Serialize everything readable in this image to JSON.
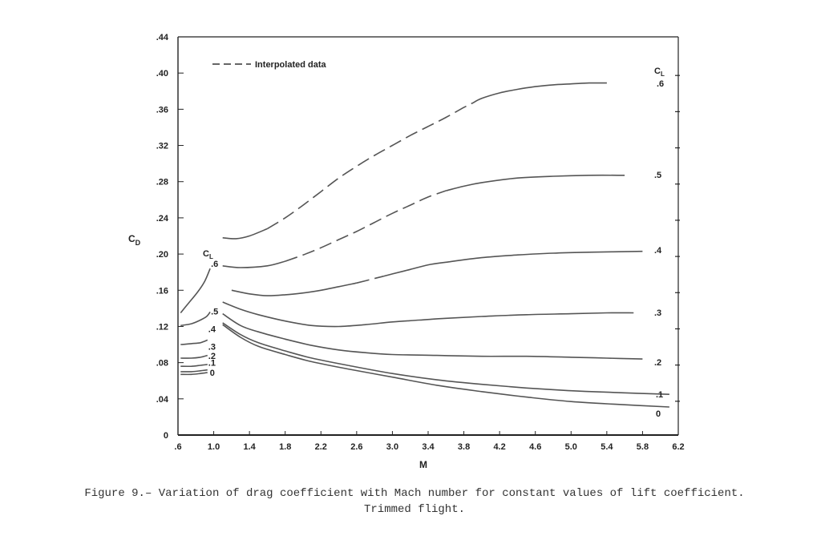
{
  "caption": {
    "line1": "Figure 9.– Variation of drag coefficient with Mach number for constant values of lift coefficient.",
    "line2": "Trimmed flight."
  },
  "chart_data": {
    "type": "line",
    "xlabel": "M",
    "ylabel": "C_D",
    "xlim": [
      0.6,
      6.2
    ],
    "ylim": [
      0,
      0.44
    ],
    "x_ticks": [
      ".6",
      "1.0",
      "1.4",
      "1.8",
      "2.2",
      "2.6",
      "3.0",
      "3.4",
      "3.8",
      "4.2",
      "4.6",
      "5.0",
      "5.4",
      "5.8",
      "6.2"
    ],
    "x_tick_values": [
      0.6,
      1.0,
      1.4,
      1.8,
      2.2,
      2.6,
      3.0,
      3.4,
      3.8,
      4.2,
      4.6,
      5.0,
      5.4,
      5.8,
      6.2
    ],
    "y_ticks": [
      "0",
      ".04",
      ".08",
      ".12",
      ".16",
      ".20",
      ".24",
      ".28",
      ".32",
      ".36",
      ".40",
      ".44"
    ],
    "y_tick_values": [
      0,
      0.04,
      0.08,
      0.12,
      0.16,
      0.2,
      0.24,
      0.28,
      0.32,
      0.36,
      0.4,
      0.44
    ],
    "legend": {
      "label": "Interpolated data",
      "style": "dashed",
      "position": "top-left"
    },
    "cl_header": "C_L",
    "subsonic_series": [
      {
        "name": ".6",
        "x": [
          0.63,
          0.72,
          0.82,
          0.9,
          0.96
        ],
        "y": [
          0.135,
          0.146,
          0.158,
          0.17,
          0.184
        ]
      },
      {
        "name": ".5",
        "x": [
          0.63,
          0.75,
          0.85,
          0.92,
          0.96
        ],
        "y": [
          0.121,
          0.123,
          0.127,
          0.131,
          0.136
        ]
      },
      {
        "name": ".4",
        "x": [
          0.63,
          0.75,
          0.85,
          0.93
        ],
        "y": [
          0.1,
          0.101,
          0.102,
          0.105
        ]
      },
      {
        "name": ".3",
        "x": [
          0.63,
          0.75,
          0.85,
          0.93
        ],
        "y": [
          0.085,
          0.085,
          0.086,
          0.088
        ]
      },
      {
        "name": ".2",
        "x": [
          0.63,
          0.75,
          0.85,
          0.93
        ],
        "y": [
          0.076,
          0.076,
          0.077,
          0.078
        ]
      },
      {
        "name": ".1",
        "x": [
          0.63,
          0.75,
          0.85,
          0.93
        ],
        "y": [
          0.07,
          0.07,
          0.071,
          0.072
        ]
      },
      {
        "name": "0",
        "x": [
          0.63,
          0.75,
          0.85,
          0.93
        ],
        "y": [
          0.067,
          0.067,
          0.068,
          0.069
        ]
      }
    ],
    "supersonic_series": [
      {
        "name": ".6",
        "x": [
          1.1,
          1.25,
          1.4,
          1.6,
          1.8,
          2.0,
          2.2,
          2.4,
          2.6,
          2.8,
          3.0,
          3.2,
          3.4,
          3.6,
          3.8,
          4.0,
          4.2,
          4.4,
          4.6,
          4.8,
          5.0,
          5.2,
          5.4
        ],
        "y": [
          0.218,
          0.217,
          0.22,
          0.228,
          0.24,
          0.254,
          0.269,
          0.284,
          0.297,
          0.309,
          0.32,
          0.331,
          0.341,
          0.351,
          0.362,
          0.372,
          0.378,
          0.382,
          0.385,
          0.387,
          0.388,
          0.389,
          0.389
        ],
        "interpolated_x_range": [
          1.6,
          3.9
        ]
      },
      {
        "name": ".5",
        "x": [
          1.1,
          1.3,
          1.6,
          1.8,
          2.0,
          2.2,
          2.4,
          2.6,
          2.8,
          3.0,
          3.2,
          3.4,
          3.6,
          3.8,
          4.0,
          4.4,
          4.8,
          5.2,
          5.6
        ],
        "y": [
          0.187,
          0.185,
          0.187,
          0.192,
          0.199,
          0.207,
          0.216,
          0.225,
          0.235,
          0.245,
          0.254,
          0.263,
          0.27,
          0.275,
          0.279,
          0.284,
          0.286,
          0.287,
          0.287
        ],
        "interpolated_x_range": [
          1.8,
          3.6
        ]
      },
      {
        "name": ".4",
        "x": [
          1.2,
          1.4,
          1.6,
          1.8,
          2.0,
          2.2,
          2.4,
          2.6,
          2.8,
          3.0,
          3.2,
          3.4,
          3.6,
          4.0,
          4.4,
          4.8,
          5.2,
          5.8
        ],
        "y": [
          0.16,
          0.156,
          0.154,
          0.155,
          0.157,
          0.16,
          0.164,
          0.168,
          0.173,
          0.178,
          0.183,
          0.188,
          0.191,
          0.196,
          0.199,
          0.201,
          0.202,
          0.203
        ],
        "interpolated_x_range": [
          2.6,
          2.9
        ]
      },
      {
        "name": ".3",
        "x": [
          1.1,
          1.3,
          1.5,
          1.8,
          2.1,
          2.4,
          2.7,
          3.0,
          3.3,
          3.6,
          4.0,
          4.5,
          5.0,
          5.4,
          5.7
        ],
        "y": [
          0.147,
          0.139,
          0.133,
          0.126,
          0.121,
          0.12,
          0.122,
          0.125,
          0.127,
          0.129,
          0.131,
          0.133,
          0.134,
          0.135,
          0.135
        ]
      },
      {
        "name": ".2",
        "x": [
          1.1,
          1.3,
          1.5,
          1.8,
          2.1,
          2.4,
          2.7,
          3.0,
          3.5,
          4.0,
          4.5,
          5.0,
          5.4,
          5.8
        ],
        "y": [
          0.134,
          0.121,
          0.114,
          0.106,
          0.099,
          0.094,
          0.091,
          0.089,
          0.088,
          0.087,
          0.087,
          0.086,
          0.085,
          0.084
        ]
      },
      {
        "name": ".1",
        "x": [
          1.1,
          1.3,
          1.5,
          1.8,
          2.1,
          2.5,
          3.0,
          3.5,
          4.0,
          4.5,
          5.0,
          5.5,
          6.1
        ],
        "y": [
          0.124,
          0.111,
          0.102,
          0.093,
          0.085,
          0.077,
          0.068,
          0.061,
          0.056,
          0.052,
          0.049,
          0.047,
          0.045
        ]
      },
      {
        "name": "0",
        "x": [
          1.1,
          1.3,
          1.5,
          1.8,
          2.1,
          2.5,
          3.0,
          3.5,
          4.0,
          4.5,
          5.0,
          5.5,
          6.1
        ],
        "y": [
          0.122,
          0.108,
          0.098,
          0.089,
          0.081,
          0.073,
          0.064,
          0.055,
          0.048,
          0.042,
          0.037,
          0.034,
          0.031
        ]
      }
    ],
    "cl_scale_labels": [
      ".6",
      ".5",
      ".4",
      ".3",
      ".2",
      ".1",
      "0"
    ]
  }
}
